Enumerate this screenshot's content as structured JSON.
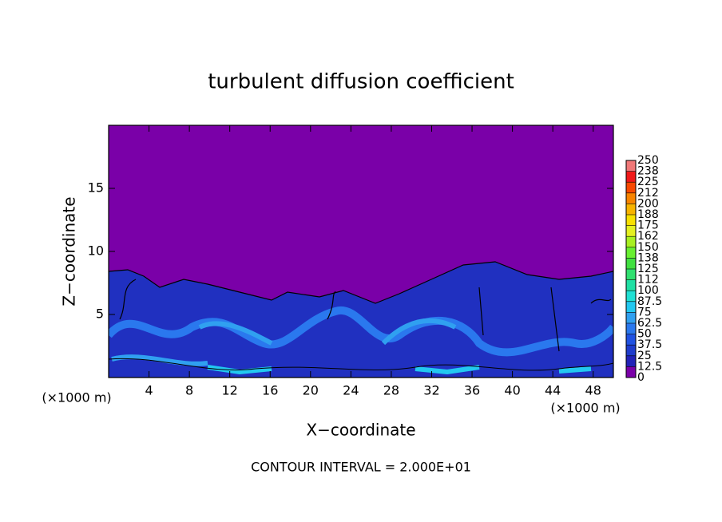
{
  "chart_data": {
    "type": "heatmap",
    "title": "turbulent diffusion coefficient",
    "x_label": "X−coordinate",
    "y_label": "Z−coordinate",
    "axis_unit": "(×1000 m)",
    "annotation": "CONTOUR INTERVAL = 2.000E+01",
    "xlim": [
      0,
      50
    ],
    "xticks": [
      4,
      8,
      12,
      16,
      20,
      24,
      28,
      32,
      36,
      40,
      44,
      48
    ],
    "ylim": [
      0,
      20
    ],
    "yticks": [
      5,
      10,
      15
    ],
    "colorbar": {
      "levels": [
        0,
        12.5,
        25,
        37.5,
        50,
        62.5,
        75,
        87.5,
        100,
        112,
        125,
        138,
        150,
        162,
        175,
        188,
        200,
        212,
        225,
        238,
        250
      ],
      "colors": [
        "#7a00a8",
        "#2222b8",
        "#1e3ccc",
        "#2052e2",
        "#2a78ee",
        "#30a0f0",
        "#22c8f0",
        "#20e0d4",
        "#20e0a4",
        "#30e070",
        "#40e040",
        "#68f030",
        "#a8f020",
        "#e4f020",
        "#f8e000",
        "#f8b400",
        "#f88400",
        "#f84800",
        "#f01818",
        "#f07878"
      ]
    }
  }
}
